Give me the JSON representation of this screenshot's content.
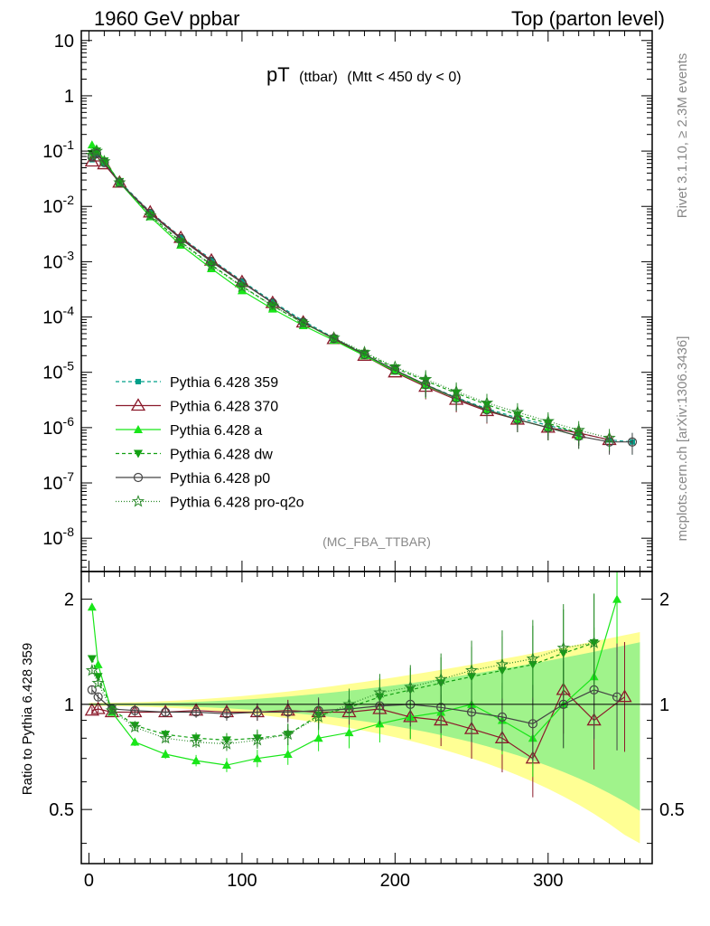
{
  "header": {
    "left": "1960 GeV ppbar",
    "right": "Top (parton level)"
  },
  "plot_title": {
    "main": "pT",
    "sub1": "(ttbar)",
    "sub2": "(Mtt < 450 dy < 0)"
  },
  "side_text": {
    "rivet": "Rivet 3.1.10, ≥ 2.3M events",
    "mcplots": "mcplots.cern.ch [arXiv:1306.3436]"
  },
  "analysis_label": "(MC_FBA_TTBAR)",
  "ratio_ylabel": "Ratio to Pythia 6.428 359",
  "colors": {
    "359": "#00a08a",
    "370": "#8b1a2b",
    "a": "#19e619",
    "dw": "#12a012",
    "p0": "#444444",
    "pro-q2o": "#2a8a2a",
    "band_yellow": "#ffff88",
    "band_green": "#88f088"
  },
  "chart_data": [
    {
      "type": "scatter",
      "panel": "main",
      "yscale": "log",
      "xlim": [
        -5,
        368
      ],
      "ylim": [
        2.5e-09,
        15
      ],
      "x_ticks": [
        0,
        100,
        200,
        300
      ],
      "y_ticks": [
        "10^-8",
        "10^-7",
        "10^-6",
        "10^-5",
        "10^-4",
        "10^-3",
        "10^-2",
        "10^-1",
        "1",
        "10"
      ],
      "legend_position": "bottom-left",
      "series": [
        {
          "name": "Pythia 6.428 359",
          "key": "359",
          "marker": "square",
          "dash": "4,3",
          "x": [
            2,
            5,
            10,
            20,
            40,
            60,
            80,
            100,
            120,
            140,
            160,
            180,
            200,
            220,
            240,
            260,
            280,
            300,
            320,
            340,
            355
          ],
          "y": [
            0.07,
            0.085,
            0.06,
            0.028,
            0.008,
            0.0028,
            0.0011,
            0.00045,
            0.00019,
            8.5e-05,
            4.2e-05,
            2.1e-05,
            1.1e-05,
            6e-06,
            3.5e-06,
            2.2e-06,
            1.5e-06,
            1.1e-06,
            8e-07,
            6e-07,
            5.5e-07
          ]
        },
        {
          "name": "Pythia 6.428 370",
          "key": "370",
          "marker": "triangle-open",
          "dash": "",
          "x": [
            2,
            5,
            10,
            20,
            40,
            60,
            80,
            100,
            120,
            140,
            160,
            180,
            200,
            220,
            240,
            260,
            280,
            300,
            320,
            340
          ],
          "y": [
            0.065,
            0.08,
            0.058,
            0.027,
            0.0078,
            0.0027,
            0.00105,
            0.00043,
            0.00018,
            8e-05,
            4e-05,
            2e-05,
            1e-05,
            5.5e-06,
            3.2e-06,
            2e-06,
            1.4e-06,
            1e-06,
            8e-07,
            6e-07
          ]
        },
        {
          "name": "Pythia 6.428 a",
          "key": "a",
          "marker": "triangle-filled",
          "dash": "",
          "x": [
            2,
            5,
            10,
            20,
            40,
            60,
            80,
            100,
            120,
            140,
            160,
            180,
            200,
            220,
            240,
            260,
            280,
            300,
            320
          ],
          "y": [
            0.13,
            0.11,
            0.07,
            0.027,
            0.0065,
            0.002,
            0.00075,
            0.0003,
            0.00014,
            7e-05,
            3.8e-05,
            2e-05,
            1.05e-05,
            5.8e-06,
            3.4e-06,
            2.1e-06,
            1.4e-06,
            1e-06,
            7e-07
          ]
        },
        {
          "name": "Pythia 6.428 dw",
          "key": "dw",
          "marker": "triangle-down",
          "dash": "4,3",
          "x": [
            2,
            5,
            10,
            20,
            40,
            60,
            80,
            100,
            120,
            140,
            160,
            180,
            200,
            220,
            240,
            260,
            280,
            300,
            320
          ],
          "y": [
            0.09,
            0.1,
            0.066,
            0.028,
            0.007,
            0.0023,
            0.00088,
            0.00036,
            0.00016,
            7.8e-05,
            4.1e-05,
            2.2e-05,
            1.2e-05,
            7e-06,
            4.2e-06,
            2.6e-06,
            1.7e-06,
            1.2e-06,
            8e-07
          ]
        },
        {
          "name": "Pythia 6.428 p0",
          "key": "p0",
          "marker": "circle-open",
          "dash": "",
          "x": [
            2,
            5,
            10,
            20,
            40,
            60,
            80,
            100,
            120,
            140,
            160,
            180,
            200,
            220,
            240,
            260,
            280,
            300,
            320,
            340,
            355
          ],
          "y": [
            0.078,
            0.09,
            0.062,
            0.027,
            0.0075,
            0.0026,
            0.001,
            0.00042,
            0.00018,
            8e-05,
            4.1e-05,
            2.1e-05,
            1.1e-05,
            6e-06,
            3.4e-06,
            2.1e-06,
            1.4e-06,
            1e-06,
            7e-07,
            5.5e-07,
            5.5e-07
          ]
        },
        {
          "name": "Pythia 6.428 pro-q2o",
          "key": "pro-q2o",
          "marker": "star",
          "dash": "1,2",
          "x": [
            2,
            5,
            10,
            20,
            40,
            60,
            80,
            100,
            120,
            140,
            160,
            180,
            200,
            220,
            240,
            260,
            280,
            300,
            320,
            340
          ],
          "y": [
            0.085,
            0.1,
            0.065,
            0.027,
            0.0068,
            0.0022,
            0.00085,
            0.00035,
            0.00016,
            7.7e-05,
            4.2e-05,
            2.3e-05,
            1.25e-05,
            7.5e-06,
            4.5e-06,
            2.8e-06,
            1.9e-06,
            1.3e-06,
            9e-07,
            6.5e-07
          ]
        }
      ]
    },
    {
      "type": "scatter",
      "panel": "ratio",
      "yscale": "log",
      "xlim": [
        -5,
        368
      ],
      "ylim": [
        0.35,
        2.4
      ],
      "x_ticks": [
        0,
        100,
        200,
        300
      ],
      "y_ticks": [
        0.5,
        1,
        2
      ],
      "ylabel": "Ratio to Pythia 6.428 359",
      "series": [
        {
          "name": "Pythia 6.428 370",
          "key": "370",
          "x": [
            2,
            6,
            15,
            30,
            50,
            70,
            90,
            110,
            130,
            150,
            170,
            190,
            210,
            230,
            250,
            270,
            290,
            310,
            330,
            350
          ],
          "y": [
            0.96,
            0.97,
            0.95,
            0.95,
            0.95,
            0.96,
            0.95,
            0.95,
            0.96,
            0.95,
            0.95,
            0.97,
            0.92,
            0.9,
            0.85,
            0.8,
            0.7,
            1.1,
            0.9,
            1.05
          ]
        },
        {
          "name": "Pythia 6.428 a",
          "key": "a",
          "x": [
            2,
            6,
            15,
            30,
            50,
            70,
            90,
            110,
            130,
            150,
            170,
            190,
            210,
            230,
            250,
            270,
            290,
            310,
            330,
            345
          ],
          "y": [
            1.9,
            1.3,
            0.95,
            0.78,
            0.72,
            0.69,
            0.67,
            0.7,
            0.72,
            0.8,
            0.83,
            0.88,
            0.92,
            0.95,
            1.0,
            0.9,
            0.8,
            1.0,
            1.2,
            2.0
          ]
        },
        {
          "name": "Pythia 6.428 dw",
          "key": "dw",
          "x": [
            2,
            6,
            15,
            30,
            50,
            70,
            90,
            110,
            130,
            150,
            170,
            190,
            210,
            230,
            250,
            270,
            290,
            310,
            330
          ],
          "y": [
            1.35,
            1.2,
            0.97,
            0.87,
            0.82,
            0.8,
            0.79,
            0.8,
            0.82,
            0.93,
            0.98,
            1.05,
            1.1,
            1.15,
            1.2,
            1.25,
            1.3,
            1.4,
            1.5
          ]
        },
        {
          "name": "Pythia 6.428 p0",
          "key": "p0",
          "x": [
            2,
            6,
            15,
            30,
            50,
            70,
            90,
            110,
            130,
            150,
            170,
            190,
            210,
            230,
            250,
            270,
            290,
            310,
            330,
            345
          ],
          "y": [
            1.1,
            1.05,
            0.97,
            0.96,
            0.95,
            0.95,
            0.94,
            0.95,
            0.95,
            0.96,
            0.97,
            0.99,
            1.0,
            0.98,
            0.95,
            0.92,
            0.88,
            1.0,
            1.1,
            1.05
          ]
        },
        {
          "name": "Pythia 6.428 pro-q2o",
          "key": "pro-q2o",
          "x": [
            2,
            6,
            15,
            30,
            50,
            70,
            90,
            110,
            130,
            150,
            170,
            190,
            210,
            230,
            250,
            270,
            290,
            310,
            330
          ],
          "y": [
            1.25,
            1.15,
            0.96,
            0.86,
            0.8,
            0.78,
            0.77,
            0.79,
            0.82,
            0.92,
            1.0,
            1.08,
            1.12,
            1.18,
            1.25,
            1.3,
            1.35,
            1.45,
            1.5
          ]
        }
      ]
    }
  ]
}
